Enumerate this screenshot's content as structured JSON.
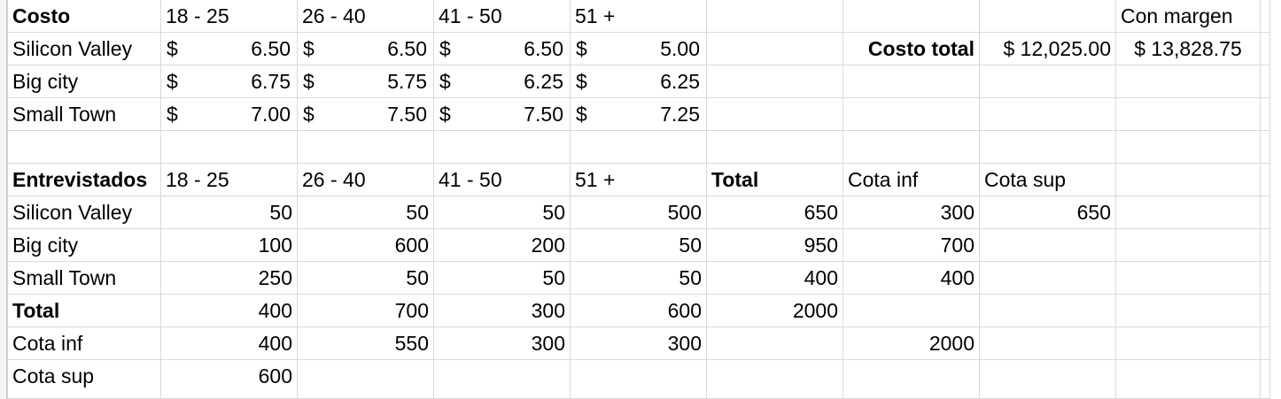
{
  "cost_table": {
    "header": [
      "Costo",
      "18 - 25",
      "26 - 40",
      "41 - 50",
      "51 +"
    ],
    "currency_symbol": "$",
    "rows": [
      {
        "label": "Silicon Valley",
        "values": [
          "6.50",
          "6.50",
          "6.50",
          "5.00"
        ]
      },
      {
        "label": "Big city",
        "values": [
          "6.75",
          "5.75",
          "6.25",
          "6.25"
        ]
      },
      {
        "label": "Small Town",
        "values": [
          "7.00",
          "7.50",
          "7.50",
          "7.25"
        ]
      }
    ]
  },
  "summary": {
    "con_margen_label": "Con margen",
    "costo_total_label": "Costo total",
    "costo_total_value": "$ 12,025.00",
    "con_margen_value": "$ 13,828.75"
  },
  "interview_table": {
    "header": [
      "Entrevistados",
      "18 - 25",
      "26 - 40",
      "41 - 50",
      "51 +",
      "Total",
      "Cota inf",
      "Cota sup"
    ],
    "rows": [
      {
        "label": "Silicon Valley",
        "values": [
          "50",
          "50",
          "50",
          "500",
          "650",
          "300",
          "650"
        ]
      },
      {
        "label": "Big city",
        "values": [
          "100",
          "600",
          "200",
          "50",
          "950",
          "700",
          ""
        ]
      },
      {
        "label": "Small Town",
        "values": [
          "250",
          "50",
          "50",
          "50",
          "400",
          "400",
          ""
        ]
      }
    ],
    "total_row": {
      "label": "Total",
      "values": [
        "400",
        "700",
        "300",
        "600",
        "2000"
      ]
    },
    "cota_inf_row": {
      "label": "Cota inf",
      "values": [
        "400",
        "550",
        "300",
        "300",
        "",
        "2000"
      ]
    },
    "cota_sup_row": {
      "label": "Cota sup",
      "values": [
        "600"
      ]
    }
  }
}
